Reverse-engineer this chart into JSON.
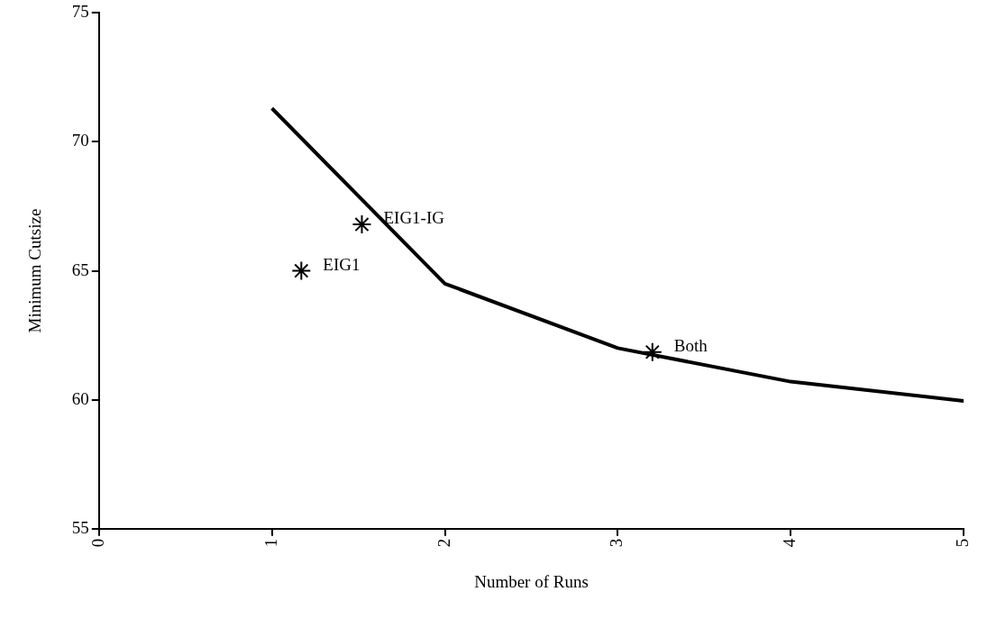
{
  "chart_data": {
    "type": "line",
    "xlabel": "Number of Runs",
    "ylabel": "Minimum Cutsize",
    "xlim": [
      0,
      5
    ],
    "xticks": [
      0,
      1,
      2,
      3,
      4,
      5
    ],
    "ylim": [
      55,
      75
    ],
    "yticks": [
      55,
      60,
      65,
      70,
      75
    ],
    "grid": false,
    "legend": false,
    "series": [
      {
        "color": "#000000",
        "x": [
          1,
          2,
          3,
          4,
          5
        ],
        "values": [
          71.3,
          64.5,
          62.0,
          60.7,
          59.95
        ],
        "marker": "none",
        "line_style": "solid"
      },
      {
        "type": "scatter",
        "color": "#000000",
        "x": [
          1.17,
          1.52,
          3.2
        ],
        "values": [
          65.0,
          66.8,
          61.85
        ],
        "marker": "cross"
      }
    ],
    "annotations": [
      {
        "text": "EIG1",
        "x": 1.17,
        "y": 65.0
      },
      {
        "text": "EIG1-IG",
        "x": 1.52,
        "y": 66.8
      },
      {
        "text": "Both",
        "x": 3.2,
        "y": 61.85
      }
    ]
  }
}
